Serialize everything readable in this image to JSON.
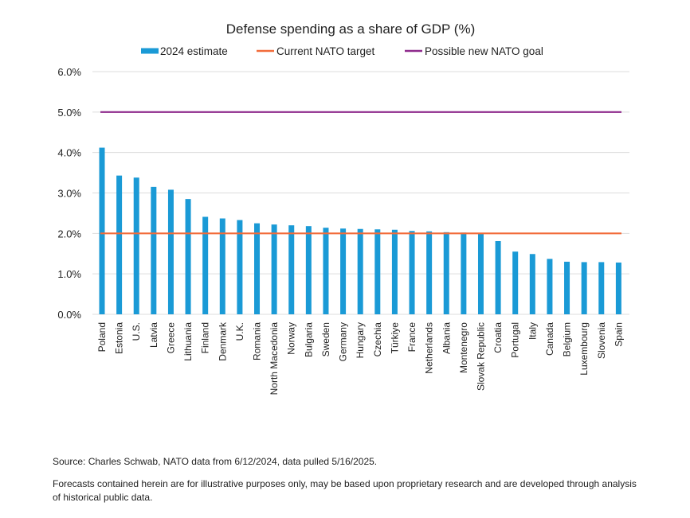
{
  "chart_data": {
    "type": "bar",
    "title": "Defense spending as a share of GDP (%)",
    "xlabel": "",
    "ylabel": "",
    "ylim": [
      0,
      6
    ],
    "yticks": [
      "0.0%",
      "1.0%",
      "2.0%",
      "3.0%",
      "4.0%",
      "5.0%",
      "6.0%"
    ],
    "grid": true,
    "legend_position": "top-center",
    "categories": [
      "Poland",
      "Estonia",
      "U.S.",
      "Latvia",
      "Greece",
      "Lithuania",
      "Finland",
      "Denmark",
      "U.K.",
      "Romania",
      "North Macedonia",
      "Norway",
      "Bulgaria",
      "Sweden",
      "Germany",
      "Hungary",
      "Czechia",
      "Türkiye",
      "France",
      "Netherlands",
      "Albania",
      "Montenegro",
      "Slovak Republic",
      "Croatia",
      "Portugal",
      "Italy",
      "Canada",
      "Belgium",
      "Luxembourg",
      "Slovenia",
      "Spain"
    ],
    "series": [
      {
        "name": "2024 estimate",
        "kind": "bar",
        "color": "#1a9ad6",
        "values": [
          4.12,
          3.43,
          3.38,
          3.15,
          3.08,
          2.85,
          2.41,
          2.37,
          2.33,
          2.25,
          2.22,
          2.2,
          2.18,
          2.14,
          2.12,
          2.11,
          2.1,
          2.09,
          2.06,
          2.05,
          2.03,
          2.02,
          2.0,
          1.81,
          1.55,
          1.49,
          1.37,
          1.3,
          1.29,
          1.29,
          1.28
        ]
      },
      {
        "name": "Current NATO target",
        "kind": "line",
        "color": "#f26b3a",
        "value": 2.0
      },
      {
        "name": "Possible new NATO goal",
        "kind": "line",
        "color": "#8e2a8c",
        "value": 5.0
      }
    ]
  },
  "notes": {
    "source": "Source: Charles Schwab, NATO data from 6/12/2024, data pulled 5/16/2025.",
    "disclaimer": "Forecasts contained herein are for illustrative purposes only, may be based upon proprietary research and are developed through analysis of historical public data."
  }
}
